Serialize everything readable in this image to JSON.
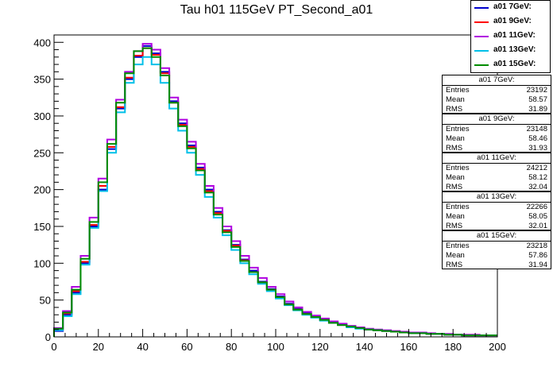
{
  "chart_data": {
    "type": "line",
    "title": "Tau h01 115GeV PT_Second_a01",
    "xlim": [
      0,
      200
    ],
    "ylim": [
      0,
      410
    ],
    "x_ticks": [
      0,
      20,
      40,
      60,
      80,
      100,
      120,
      140,
      160,
      180,
      200
    ],
    "y_ticks": [
      0,
      50,
      100,
      150,
      200,
      250,
      300,
      350,
      400
    ],
    "grid": false,
    "legend_position": "top-right",
    "colors": {
      "a01 7GeV": "#0000cc",
      "a01 9GeV": "#ff0000",
      "a01 11GeV": "#b000e0",
      "a01 13GeV": "#00c0e8",
      "a01 15GeV": "#008c00"
    },
    "x": [
      2,
      6,
      10,
      14,
      18,
      22,
      26,
      30,
      34,
      38,
      42,
      46,
      50,
      54,
      58,
      62,
      66,
      70,
      74,
      78,
      82,
      86,
      90,
      94,
      98,
      102,
      106,
      110,
      114,
      118,
      122,
      126,
      130,
      134,
      138,
      142,
      146,
      150,
      154,
      158,
      162,
      166,
      170,
      174,
      178,
      182,
      186,
      190,
      194,
      198
    ],
    "series": [
      {
        "name": "a01 7GeV",
        "values": [
          8,
          30,
          60,
          100,
          150,
          200,
          255,
          310,
          350,
          380,
          395,
          385,
          360,
          320,
          290,
          260,
          230,
          200,
          170,
          145,
          125,
          105,
          90,
          75,
          65,
          55,
          45,
          38,
          32,
          27,
          23,
          20,
          17,
          14,
          12,
          10,
          9,
          8,
          7,
          6,
          5,
          5,
          4,
          4,
          3,
          3,
          2,
          2,
          2,
          2
        ]
      },
      {
        "name": "a01 9GeV",
        "values": [
          10,
          32,
          62,
          102,
          152,
          205,
          258,
          312,
          352,
          382,
          392,
          383,
          358,
          318,
          288,
          258,
          228,
          198,
          168,
          144,
          124,
          104,
          88,
          74,
          64,
          54,
          44,
          37,
          31,
          27,
          23,
          19,
          16,
          14,
          12,
          10,
          9,
          8,
          7,
          6,
          5,
          5,
          4,
          4,
          3,
          3,
          2,
          2,
          2,
          2
        ]
      },
      {
        "name": "a01 11GeV",
        "values": [
          12,
          35,
          68,
          110,
          162,
          215,
          268,
          322,
          360,
          388,
          398,
          390,
          365,
          325,
          295,
          265,
          235,
          205,
          175,
          150,
          130,
          110,
          94,
          80,
          68,
          58,
          48,
          40,
          34,
          29,
          25,
          21,
          18,
          15,
          13,
          11,
          10,
          9,
          8,
          7,
          6,
          6,
          5,
          4,
          4,
          3,
          3,
          3,
          2,
          2
        ]
      },
      {
        "name": "a01 13GeV",
        "values": [
          9,
          28,
          58,
          98,
          148,
          198,
          250,
          305,
          345,
          370,
          380,
          370,
          345,
          310,
          280,
          250,
          220,
          190,
          162,
          138,
          118,
          100,
          85,
          72,
          62,
          52,
          43,
          36,
          30,
          26,
          22,
          19,
          16,
          13,
          11,
          10,
          9,
          8,
          7,
          6,
          5,
          5,
          4,
          4,
          3,
          3,
          2,
          2,
          2,
          2
        ]
      },
      {
        "name": "a01 15GeV",
        "values": [
          11,
          33,
          64,
          106,
          156,
          210,
          262,
          318,
          358,
          388,
          392,
          380,
          355,
          318,
          286,
          256,
          226,
          196,
          166,
          142,
          122,
          103,
          88,
          74,
          64,
          54,
          44,
          37,
          31,
          27,
          23,
          19,
          16,
          14,
          12,
          10,
          9,
          8,
          7,
          6,
          5,
          5,
          4,
          4,
          3,
          3,
          2,
          2,
          2,
          2
        ]
      }
    ]
  },
  "stats": [
    {
      "title": "a01 7GeV:",
      "entries": "23192",
      "mean": "58.57",
      "rms": "31.89"
    },
    {
      "title": "a01 9GeV:",
      "entries": "23148",
      "mean": "58.46",
      "rms": "31.93"
    },
    {
      "title": "a01 11GeV:",
      "entries": "24212",
      "mean": "58.12",
      "rms": "32.04"
    },
    {
      "title": "a01 13GeV:",
      "entries": "22266",
      "mean": "58.05",
      "rms": "32.01"
    },
    {
      "title": "a01 15GeV:",
      "entries": "23218",
      "mean": "57.86",
      "rms": "31.94"
    }
  ],
  "stat_labels": {
    "entries": "Entries",
    "mean": "Mean",
    "rms": "RMS"
  },
  "legend": [
    {
      "label": "a01 7GeV:",
      "color": "#0000cc"
    },
    {
      "label": "a01 9GeV:",
      "color": "#ff0000"
    },
    {
      "label": "a01 11GeV:",
      "color": "#b000e0"
    },
    {
      "label": "a01 13GeV:",
      "color": "#00c0e8"
    },
    {
      "label": "a01 15GeV:",
      "color": "#008c00"
    }
  ]
}
